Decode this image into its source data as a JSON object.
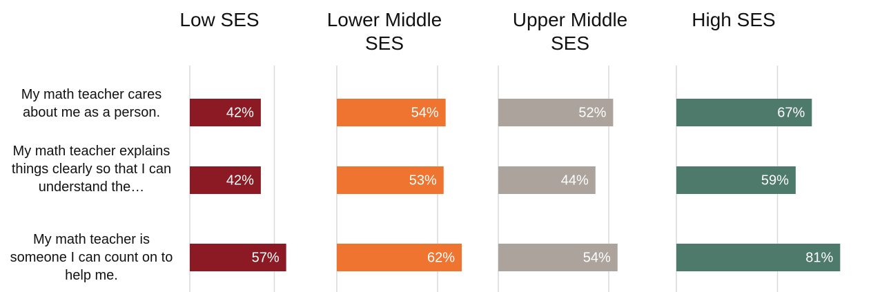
{
  "chart_data": [
    {
      "type": "bar",
      "orientation": "horizontal",
      "title": "Low SES",
      "categories": [
        "My math teacher cares about me as a person.",
        "My math teacher explains things clearly so that I can understand the…",
        "My math teacher is someone I can count on to help me."
      ],
      "values": [
        42,
        42,
        57
      ],
      "value_labels": [
        "42%",
        "42%",
        "57%"
      ],
      "color": "#8b1a24",
      "xlim": [
        0,
        100
      ],
      "xticks": [
        0,
        50
      ],
      "grid": true
    },
    {
      "type": "bar",
      "orientation": "horizontal",
      "title": "Lower Middle SES",
      "values": [
        54,
        53,
        62
      ],
      "value_labels": [
        "54%",
        "53%",
        "62%"
      ],
      "color": "#ee7430",
      "xlim": [
        0,
        100
      ],
      "xticks": [
        0,
        50
      ],
      "grid": true
    },
    {
      "type": "bar",
      "orientation": "horizontal",
      "title": "Upper Middle SES",
      "values": [
        52,
        44,
        54
      ],
      "value_labels": [
        "52%",
        "44%",
        "54%"
      ],
      "color": "#aca49c",
      "xlim": [
        0,
        100
      ],
      "xticks": [
        0,
        50
      ],
      "grid": true
    },
    {
      "type": "bar",
      "orientation": "horizontal",
      "title": "High SES",
      "values": [
        67,
        59,
        81
      ],
      "value_labels": [
        "67%",
        "59%",
        "81%"
      ],
      "color": "#4e7a6c",
      "xlim": [
        0,
        100
      ],
      "xticks": [
        0,
        50
      ],
      "grid": true
    }
  ]
}
